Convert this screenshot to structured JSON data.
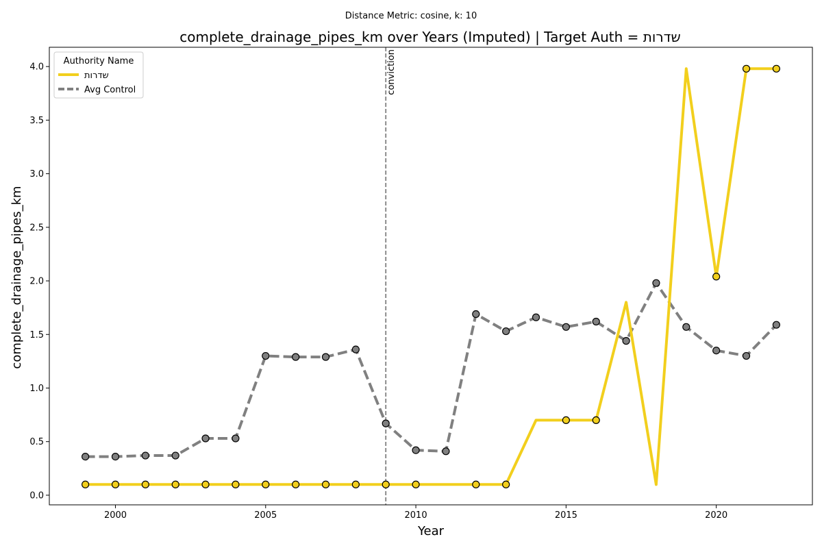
{
  "chart_data": {
    "type": "line",
    "suptitle": "Distance Metric: cosine, k: 10",
    "title": "complete_drainage_pipes_km over Years (Imputed) | Target Auth = שדרות",
    "xlabel": "Year",
    "ylabel": "complete_drainage_pipes_km",
    "xlim": [
      1997.8,
      2023.2
    ],
    "ylim": [
      -0.09,
      4.18
    ],
    "x_ticks": [
      2000,
      2005,
      2010,
      2015,
      2020
    ],
    "y_ticks": [
      0.0,
      0.5,
      1.0,
      1.5,
      2.0,
      2.5,
      3.0,
      3.5,
      4.0
    ],
    "y_tick_labels": [
      "0.0",
      "0.5",
      "1.0",
      "1.5",
      "2.0",
      "2.5",
      "3.0",
      "3.5",
      "4.0"
    ],
    "legend": {
      "title": "Authority Name",
      "position": "top-left"
    },
    "grid": false,
    "annotation": {
      "label": "conviction",
      "x": 2009,
      "style": "dashed",
      "color": "#808080"
    },
    "x": [
      1999,
      2000,
      2001,
      2002,
      2003,
      2004,
      2005,
      2006,
      2007,
      2008,
      2009,
      2010,
      2011,
      2012,
      2013,
      2014,
      2015,
      2016,
      2017,
      2018,
      2019,
      2020,
      2021,
      2022
    ],
    "series": [
      {
        "name": "שדרות",
        "color": "#f2cf1d",
        "dash": "solid",
        "values": [
          0.1,
          0.1,
          0.1,
          0.1,
          0.1,
          0.1,
          0.1,
          0.1,
          0.1,
          0.1,
          0.1,
          0.1,
          0.1,
          0.1,
          0.1,
          0.7,
          0.7,
          0.7,
          1.8,
          0.1,
          3.98,
          2.04,
          3.98,
          3.98
        ],
        "markers": [
          true,
          true,
          true,
          true,
          true,
          true,
          true,
          true,
          true,
          true,
          true,
          true,
          false,
          true,
          true,
          false,
          true,
          true,
          false,
          false,
          false,
          true,
          true,
          true
        ]
      },
      {
        "name": "Avg Control",
        "color": "#808080",
        "dash": "dashed",
        "values": [
          0.36,
          0.36,
          0.37,
          0.37,
          0.53,
          0.53,
          1.3,
          1.29,
          1.29,
          1.36,
          0.67,
          0.42,
          0.41,
          1.69,
          1.53,
          1.66,
          1.57,
          1.62,
          1.44,
          1.98,
          1.57,
          1.35,
          1.3,
          1.59
        ],
        "markers": [
          true,
          true,
          true,
          true,
          true,
          true,
          true,
          true,
          true,
          true,
          true,
          true,
          true,
          true,
          true,
          true,
          true,
          true,
          true,
          true,
          true,
          true,
          true,
          true
        ]
      }
    ]
  }
}
